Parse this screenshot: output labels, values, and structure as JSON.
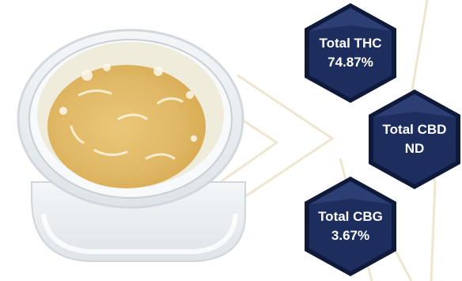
{
  "cannabinoids": [
    {
      "label": "Total THC",
      "value": "74.87%"
    },
    {
      "label": "Total CBD",
      "value": "ND"
    },
    {
      "label": "Total CBG",
      "value": "3.67%"
    }
  ],
  "colors": {
    "hex_fill": "#1c2d5e",
    "hex_border": "#0f1a3a",
    "hex_shine": "#3a4f86",
    "jar_glass": "#e9edf0",
    "concentrate": "#e4bd6a",
    "watermark_line": "#efe6cf"
  },
  "images": {
    "product": "glass-jar-of-live-resin-concentrate"
  }
}
